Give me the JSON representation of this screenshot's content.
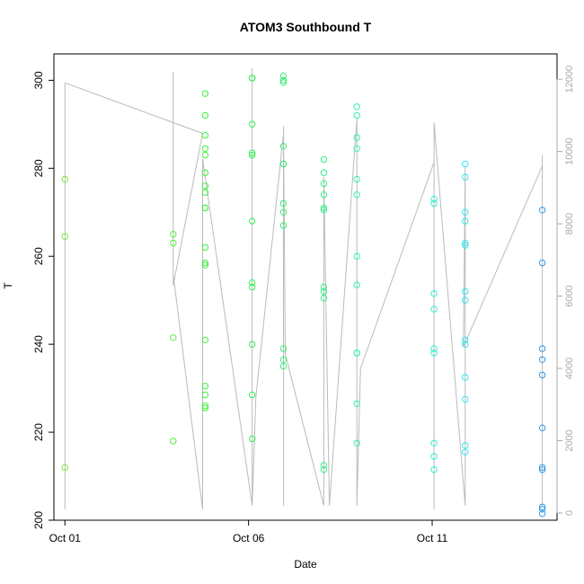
{
  "chart_data": {
    "type": "scatter",
    "title": "ATOM3 Southbound T",
    "xlabel": "Date",
    "ylabel": "T",
    "x_ticks": [
      {
        "label": "Oct 01",
        "day": 1
      },
      {
        "label": "Oct 06",
        "day": 6
      },
      {
        "label": "Oct 11",
        "day": 11
      }
    ],
    "xlim_days": [
      0.7,
      14.4
    ],
    "ylim": [
      200,
      306
    ],
    "y_ticks": [
      200,
      220,
      240,
      260,
      280,
      300
    ],
    "y2_ticks": [
      0,
      2000,
      4000,
      6000,
      8000,
      10000,
      12000
    ],
    "y2lim": [
      -200,
      12700
    ],
    "grid": false,
    "colors": {
      "axis": "#000000",
      "axis2": "#aaaaaa",
      "line": "#bbbbbb"
    },
    "point_groups": [
      {
        "x": 1.0,
        "color": "#7fe63c",
        "y": [
          277.5,
          264.5,
          212.0
        ]
      },
      {
        "x": 3.95,
        "color": "#55ee40",
        "y": [
          265.0,
          263.0,
          241.5,
          218.0
        ]
      },
      {
        "x": 4.82,
        "color": "#3cf03c",
        "y": [
          297.0,
          292.0,
          287.5,
          284.5,
          283.0,
          279.0,
          276.0,
          274.5,
          271.0,
          271.0,
          262.0,
          258.5,
          258.0,
          241.0,
          230.5,
          228.5,
          226.0,
          225.5
        ]
      },
      {
        "x": 6.1,
        "color": "#33f055",
        "y": [
          300.5,
          300.5,
          290.0,
          283.5,
          283.0,
          268.0,
          254.0,
          253.0,
          240.0,
          228.5,
          218.5
        ]
      },
      {
        "x": 6.95,
        "color": "#33f070",
        "y": [
          301.0,
          300.0,
          299.5,
          285.0,
          281.0,
          281.0,
          272.0,
          270.0,
          267.0,
          239.0,
          236.5,
          235.0
        ]
      },
      {
        "x": 8.05,
        "color": "#33f08c",
        "y": [
          282.0,
          279.0,
          276.5,
          274.0,
          271.0,
          270.5,
          253.0,
          252.0,
          250.5,
          212.5,
          211.5
        ]
      },
      {
        "x": 8.95,
        "color": "#33f0a8",
        "y": [
          294.0,
          292.0,
          287.0,
          284.5,
          277.5,
          274.0,
          260.0,
          253.5,
          238.0,
          238.0,
          226.5,
          217.5
        ]
      },
      {
        "x": 11.05,
        "color": "#33eed8",
        "y": [
          273.0,
          272.0,
          251.5,
          248.0,
          239.0,
          238.0,
          217.5,
          214.5,
          211.5
        ]
      },
      {
        "x": 11.9,
        "color": "#33e6f0",
        "y": [
          281.0,
          278.0,
          270.0,
          268.0,
          263.0,
          262.5,
          252.0,
          250.0,
          241.0,
          240.0,
          232.5,
          227.5,
          217.0,
          215.5
        ]
      },
      {
        "x": 14.0,
        "color": "#3399e6",
        "y": [
          270.5,
          258.5,
          239.0,
          236.5,
          233.0,
          221.0,
          212.0,
          211.5,
          203.0,
          202.5,
          201.5
        ]
      }
    ],
    "secondary_line": {
      "name": "",
      "x": [
        1.0,
        1.0,
        4.75,
        3.95,
        3.95,
        3.95,
        4.75,
        4.75,
        6.1,
        6.1,
        6.1,
        6.2,
        6.95,
        6.95,
        6.95,
        7.0,
        8.05,
        8.05,
        8.2,
        8.95,
        8.95,
        9.05,
        11.05,
        11.05,
        11.05,
        11.9,
        11.9,
        11.9,
        11.85,
        14.0,
        14.0,
        14.0
      ],
      "y": [
        100,
        11900,
        10500,
        6300,
        12200,
        6600,
        100,
        9800,
        200,
        12300,
        200,
        3200,
        10500,
        200,
        10700,
        4400,
        200,
        9300,
        200,
        10900,
        200,
        4000,
        9700,
        100,
        10800,
        200,
        6800,
        9600,
        4600,
        9600,
        200,
        9900
      ]
    }
  }
}
